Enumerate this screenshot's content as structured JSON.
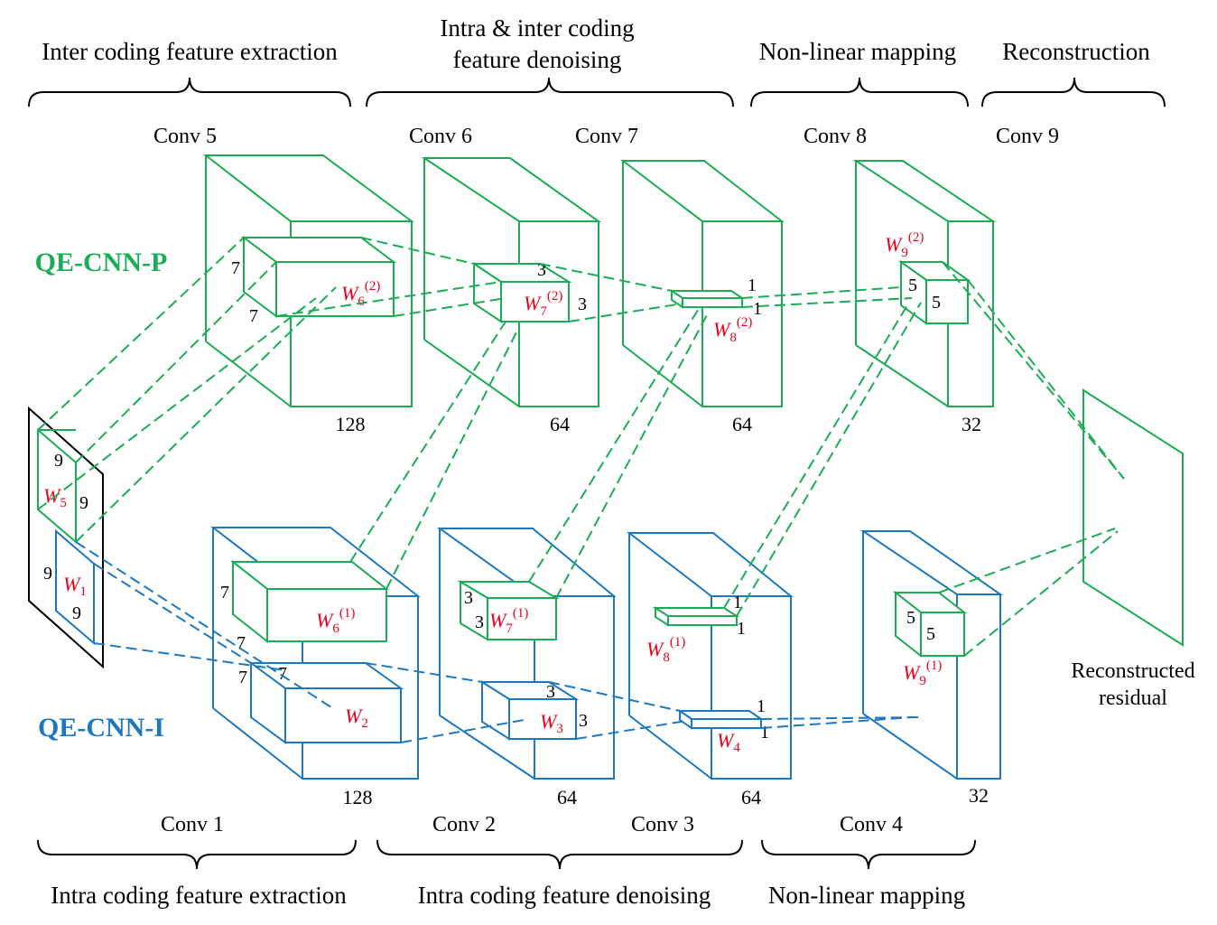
{
  "top_sections": {
    "inter_extraction": "Inter coding feature extraction",
    "denoising_line1": "Intra & inter coding",
    "denoising_line2": "feature denoising",
    "nonlinear": "Non-linear mapping",
    "reconstruction": "Reconstruction"
  },
  "bottom_sections": {
    "intra_extraction": "Intra coding feature extraction",
    "intra_denoising": "Intra coding feature denoising",
    "nonlinear": "Non-linear mapping"
  },
  "conv_labels_top": [
    "Conv 5",
    "Conv 6",
    "Conv 7",
    "Conv 8",
    "Conv 9"
  ],
  "conv_labels_bottom": [
    "Conv 1",
    "Conv 2",
    "Conv 3",
    "Conv 4"
  ],
  "networks": {
    "p": {
      "name": "QE-CNN-P",
      "color": "#1bac55"
    },
    "i": {
      "name": "QE-CNN-I",
      "color": "#1e78c0"
    }
  },
  "channel_counts_top": [
    "128",
    "64",
    "64",
    "32"
  ],
  "channel_counts_bottom": [
    "128",
    "64",
    "64",
    "32"
  ],
  "weights": {
    "w1": {
      "base": "W",
      "sub": "1"
    },
    "w2": {
      "base": "W",
      "sub": "2"
    },
    "w3": {
      "base": "W",
      "sub": "3"
    },
    "w4": {
      "base": "W",
      "sub": "4"
    },
    "w5": {
      "base": "W",
      "sub": "5"
    },
    "w6_1": {
      "base": "W",
      "sub": "6",
      "sup": "(1)"
    },
    "w6_2": {
      "base": "W",
      "sub": "6",
      "sup": "(2)"
    },
    "w7_1": {
      "base": "W",
      "sub": "7",
      "sup": "(1)"
    },
    "w7_2": {
      "base": "W",
      "sub": "7",
      "sup": "(2)"
    },
    "w8_1": {
      "base": "W",
      "sub": "8",
      "sup": "(1)"
    },
    "w8_2": {
      "base": "W",
      "sub": "8",
      "sup": "(2)"
    },
    "w9_1": {
      "base": "W",
      "sub": "9",
      "sup": "(1)"
    },
    "w9_2": {
      "base": "W",
      "sub": "9",
      "sup": "(2)"
    }
  },
  "kernel_sizes": {
    "nine": "9",
    "seven": "7",
    "five": "5",
    "three": "3",
    "one": "1"
  },
  "output_label_line1": "Reconstructed",
  "output_label_line2": "residual",
  "colors": {
    "green": "#1bac55",
    "blue": "#1e78c0",
    "red": "#e8001c"
  }
}
